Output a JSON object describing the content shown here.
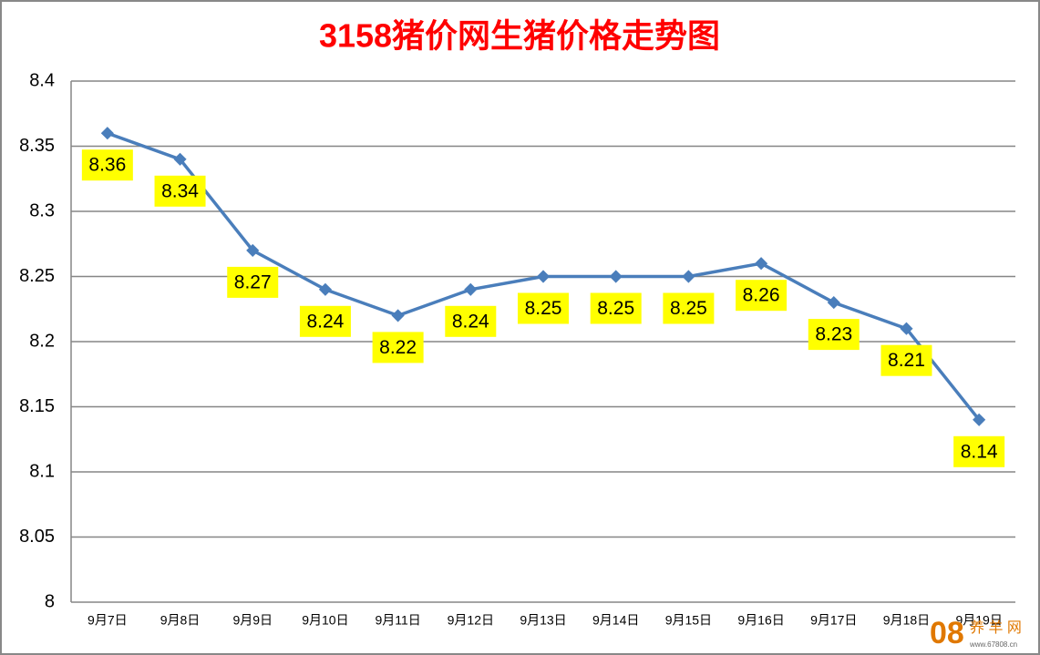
{
  "chart_data": {
    "type": "line",
    "title": "3158猪价网生猪价格走势图",
    "categories": [
      "9月7日",
      "9月8日",
      "9月9日",
      "9月10日",
      "9月11日",
      "9月12日",
      "9月13日",
      "9月14日",
      "9月15日",
      "9月16日",
      "9月17日",
      "9月18日",
      "9月19日"
    ],
    "values": [
      8.36,
      8.34,
      8.27,
      8.24,
      8.22,
      8.24,
      8.25,
      8.25,
      8.25,
      8.26,
      8.23,
      8.21,
      8.14
    ],
    "color": "#4a7ebb",
    "label_color": "#ffff00",
    "ylim": [
      8,
      8.4
    ],
    "yticks": [
      8,
      8.05,
      8.1,
      8.15,
      8.2,
      8.25,
      8.3,
      8.35,
      8.4
    ],
    "grid": true
  },
  "watermark": {
    "logo": "08",
    "text": "养 羊 网",
    "url": "www.67808.cn"
  }
}
